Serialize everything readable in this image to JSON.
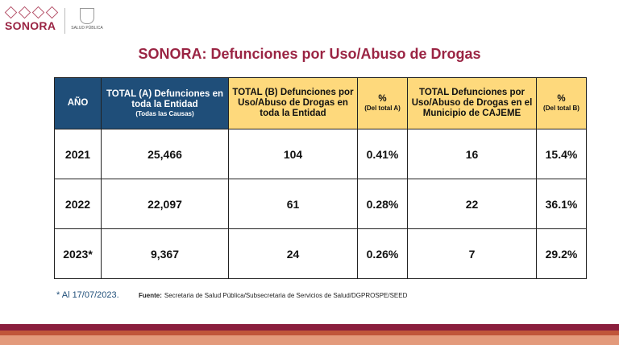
{
  "header": {
    "logo_text": "SONORA",
    "partner_text": "SALUD PÚBLICA",
    "title": "SONORA: Defunciones por Uso/Abuso de Drogas"
  },
  "table": {
    "columns": [
      {
        "title": "AÑO"
      },
      {
        "title": "TOTAL (A) Defunciones en toda la Entidad",
        "subtitle": "(Todas las Causas)"
      },
      {
        "title": "TOTAL (B) Defunciones por Uso/Abuso de Drogas en toda la Entidad"
      },
      {
        "title": "%",
        "subtitle": "(Del total A)"
      },
      {
        "title": "TOTAL Defunciones por Uso/Abuso de Drogas en el Municipio de CAJEME"
      },
      {
        "title": "%",
        "subtitle": "(Del total B)"
      }
    ],
    "rows": [
      [
        "2021",
        "25,466",
        "104",
        "0.41%",
        "16",
        "15.4%"
      ],
      [
        "2022",
        "22,097",
        "61",
        "0.28%",
        "22",
        "36.1%"
      ],
      [
        "2023*",
        "9,367",
        "24",
        "0.26%",
        "7",
        "29.2%"
      ]
    ]
  },
  "footer": {
    "note": "* Al 17/07/2023.",
    "source_label": "Fuente:",
    "source": "Secretaria de Salud Pública/Subsecretaria de Servicios de Salud/DGPROSPE/SEED"
  }
}
